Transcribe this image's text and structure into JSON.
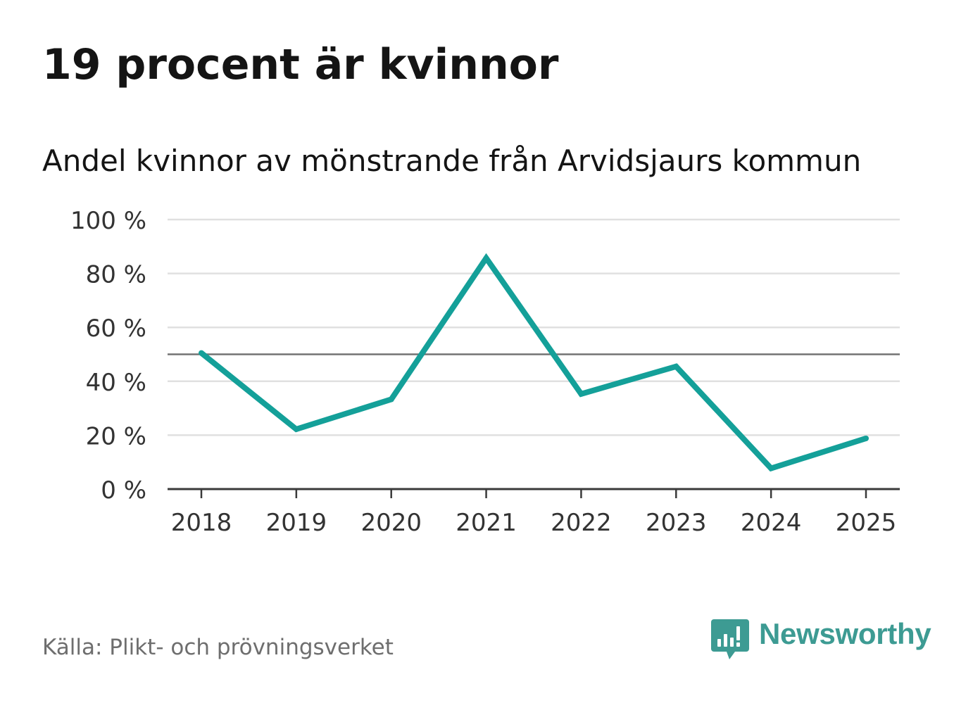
{
  "title": "19 procent är kvinnor",
  "subtitle": "Andel kvinnor av mönstrande från Arvidsjaurs kommun",
  "source": "Källa: Plikt- och prövningsverket",
  "brand": {
    "name": "Newsworthy",
    "color": "#3d9b93",
    "icon": "newsworthy-logo-icon"
  },
  "colors": {
    "line": "#14a099",
    "reference_line": "#737373",
    "grid": "#e0e0e0",
    "axis": "#3a3a3a",
    "tick_text": "#333333"
  },
  "chart_data": {
    "type": "line",
    "title": "19 procent är kvinnor",
    "subtitle": "Andel kvinnor av mönstrande från Arvidsjaurs kommun",
    "xlabel": "",
    "ylabel": "",
    "x": [
      "2018",
      "2019",
      "2020",
      "2021",
      "2022",
      "2023",
      "2024",
      "2025"
    ],
    "series": [
      {
        "values": [
          50.5,
          22.2,
          33.3,
          85.7,
          35.3,
          45.5,
          7.7,
          18.8
        ]
      }
    ],
    "ylim": [
      0,
      100
    ],
    "yticks": [
      0,
      20,
      40,
      60,
      80,
      100
    ],
    "ytick_labels": [
      "0 %",
      "20 %",
      "40 %",
      "60 %",
      "80 %",
      "100 %"
    ],
    "reference_line": 50,
    "grid": true,
    "legend": "none"
  }
}
